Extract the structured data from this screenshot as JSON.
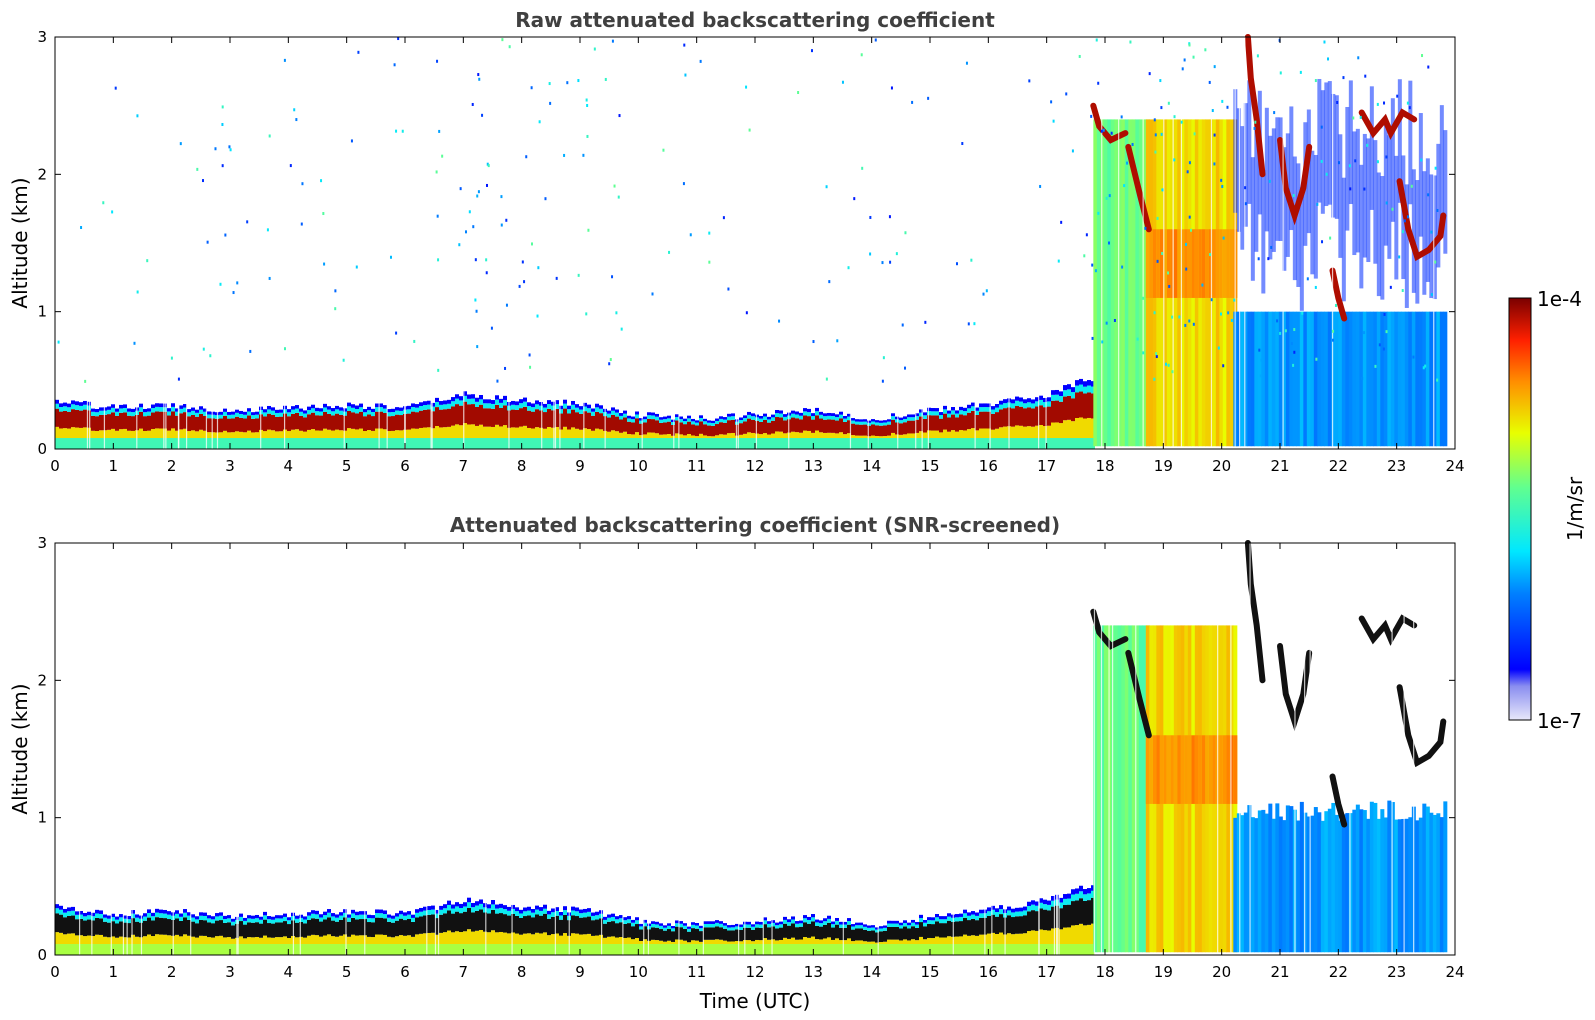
{
  "chart_data": [
    {
      "type": "heatmap",
      "title": "Raw attenuated backscattering coefficient",
      "xlabel": "",
      "ylabel": "Altitude (km)",
      "xlim": [
        0,
        24
      ],
      "ylim": [
        0,
        3
      ],
      "xticks": [
        "0",
        "1",
        "2",
        "3",
        "4",
        "5",
        "6",
        "7",
        "8",
        "9",
        "10",
        "11",
        "12",
        "13",
        "14",
        "15",
        "16",
        "17",
        "18",
        "19",
        "20",
        "21",
        "22",
        "23",
        "24"
      ],
      "yticks": [
        "0",
        "1",
        "2",
        "3"
      ],
      "screened": false,
      "features": {
        "boundary_layer": {
          "top_km_by_hour": [
            [
              0,
              0.35
            ],
            [
              1,
              0.3
            ],
            [
              2,
              0.32
            ],
            [
              3,
              0.28
            ],
            [
              4,
              0.3
            ],
            [
              5,
              0.32
            ],
            [
              6,
              0.3
            ],
            [
              7,
              0.4
            ],
            [
              8,
              0.35
            ],
            [
              9,
              0.33
            ],
            [
              10,
              0.25
            ],
            [
              11,
              0.22
            ],
            [
              12,
              0.25
            ],
            [
              13,
              0.28
            ],
            [
              14,
              0.22
            ],
            [
              15,
              0.28
            ],
            [
              16,
              0.33
            ],
            [
              17,
              0.4
            ],
            [
              17.6,
              0.5
            ]
          ]
        },
        "aerosol_columns": [
          {
            "start_hour": 17.8,
            "end_hour": 18.7,
            "top_km": 2.4,
            "level": 0.55
          },
          {
            "start_hour": 18.7,
            "end_hour": 20.2,
            "top_km": 2.4,
            "level": 0.72
          },
          {
            "start_hour": 20.2,
            "end_hour": 23.8,
            "top_km": 1.0,
            "level": 0.32
          }
        ],
        "cloud_segments": [
          [
            [
              17.8,
              2.5
            ],
            [
              17.9,
              2.35
            ],
            [
              18.1,
              2.25
            ],
            [
              18.35,
              2.3
            ]
          ],
          [
            [
              18.4,
              2.2
            ],
            [
              18.6,
              1.85
            ],
            [
              18.75,
              1.6
            ]
          ],
          [
            [
              20.45,
              3.0
            ],
            [
              20.5,
              2.7
            ],
            [
              20.6,
              2.4
            ],
            [
              20.7,
              2.0
            ]
          ],
          [
            [
              21.0,
              2.25
            ],
            [
              21.1,
              1.9
            ],
            [
              21.25,
              1.7
            ],
            [
              21.4,
              1.9
            ],
            [
              21.5,
              2.2
            ]
          ],
          [
            [
              21.9,
              1.3
            ],
            [
              22.0,
              1.1
            ],
            [
              22.1,
              0.95
            ]
          ],
          [
            [
              22.4,
              2.45
            ],
            [
              22.6,
              2.3
            ],
            [
              22.8,
              2.4
            ],
            [
              22.9,
              2.3
            ],
            [
              23.1,
              2.45
            ],
            [
              23.3,
              2.4
            ]
          ],
          [
            [
              23.05,
              1.95
            ],
            [
              23.2,
              1.6
            ],
            [
              23.35,
              1.4
            ],
            [
              23.55,
              1.45
            ],
            [
              23.75,
              1.55
            ],
            [
              23.8,
              1.7
            ]
          ]
        ]
      }
    },
    {
      "type": "heatmap",
      "title": "Attenuated backscattering coefficient (SNR-screened)",
      "xlabel": "Time (UTC)",
      "ylabel": "Altitude (km)",
      "xlim": [
        0,
        24
      ],
      "ylim": [
        0,
        3
      ],
      "xticks": [
        "0",
        "1",
        "2",
        "3",
        "4",
        "5",
        "6",
        "7",
        "8",
        "9",
        "10",
        "11",
        "12",
        "13",
        "14",
        "15",
        "16",
        "17",
        "18",
        "19",
        "20",
        "21",
        "22",
        "23",
        "24"
      ],
      "yticks": [
        "0",
        "1",
        "2",
        "3"
      ],
      "screened": true
    }
  ],
  "colorbar": {
    "max_label": "1e-4",
    "min_label": "1e-7",
    "unit_label": "1/m/sr",
    "scale": "log",
    "range": [
      1e-07,
      0.0001
    ]
  }
}
